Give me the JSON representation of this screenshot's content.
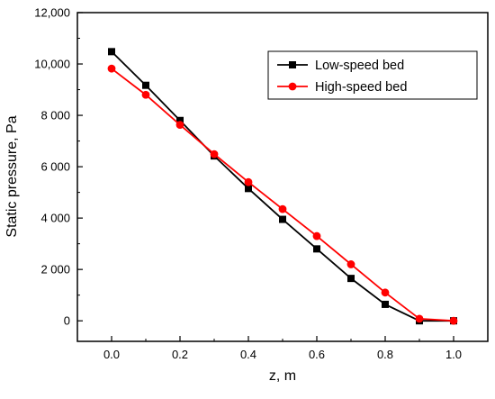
{
  "chart_data": {
    "type": "line",
    "xlabel": "z, m",
    "ylabel": "Static pressure, Pa",
    "xlim": [
      -0.1,
      1.1
    ],
    "ylim": [
      -800,
      12000
    ],
    "x_ticks": [
      0.0,
      0.2,
      0.4,
      0.6,
      0.8,
      1.0
    ],
    "x_tick_labels": [
      "0.0",
      "0.2",
      "0.4",
      "0.6",
      "0.8",
      "1.0"
    ],
    "y_ticks": [
      0,
      2000,
      4000,
      6000,
      8000,
      10000,
      12000
    ],
    "y_tick_labels": [
      "0",
      "2 000",
      "4 000",
      "6 000",
      "8 000",
      "10,000",
      "12,000"
    ],
    "grid": false,
    "legend_position": "top-right",
    "series": [
      {
        "name": "Low-speed bed",
        "color": "#000000",
        "marker": "square",
        "x": [
          0.0,
          0.1,
          0.2,
          0.3,
          0.4,
          0.5,
          0.6,
          0.7,
          0.8,
          0.9,
          1.0
        ],
        "values": [
          10480,
          9170,
          7800,
          6420,
          5150,
          3950,
          2800,
          1650,
          640,
          0,
          0
        ]
      },
      {
        "name": "High-speed bed",
        "color": "#ff0000",
        "marker": "circle",
        "x": [
          0.0,
          0.1,
          0.2,
          0.3,
          0.4,
          0.5,
          0.6,
          0.7,
          0.8,
          0.9,
          1.0
        ],
        "values": [
          9820,
          8800,
          7630,
          6490,
          5400,
          4350,
          3300,
          2200,
          1100,
          80,
          0
        ]
      }
    ]
  }
}
